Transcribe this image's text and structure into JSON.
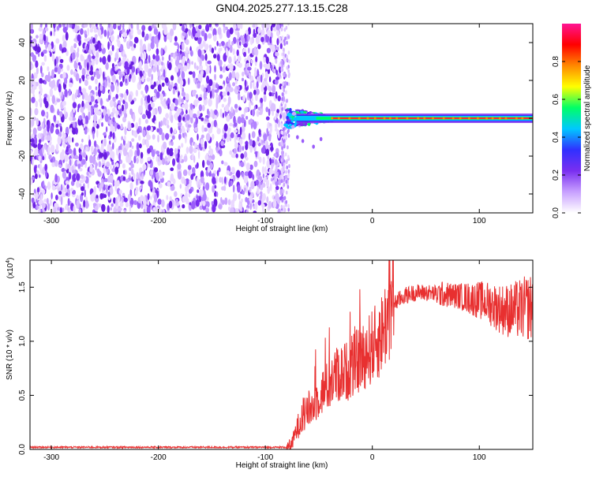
{
  "title": "GN04.2025.277.13.15.C28",
  "chart_data": [
    {
      "type": "heatmap",
      "xlabel": "Height of straight line (km)",
      "ylabel": "Frequency (Hz)",
      "xlim": [
        -320,
        150
      ],
      "ylim": [
        -50,
        50
      ],
      "xticks": [
        -300,
        -200,
        -100,
        0,
        100
      ],
      "yticks": [
        -40,
        -20,
        0,
        20,
        40
      ],
      "noise_region_x": [
        -320,
        -82
      ],
      "signal_center_frequency": 0,
      "signal_start_x": -82,
      "colorbar": {
        "label": "Normalized spectral amplitude",
        "range": [
          0.0,
          1.0
        ],
        "ticks": [
          0.0,
          0.2,
          0.4,
          0.6,
          0.8
        ],
        "tick_labels": [
          "0.0",
          "0.2",
          "0.4",
          "0.6",
          "0.8"
        ],
        "colors": [
          "#ffffff",
          "#c8a0ff",
          "#7a2ff0",
          "#3030ff",
          "#00c8ff",
          "#00ff66",
          "#ffff00",
          "#ff8800",
          "#ff0000",
          "#ff1493"
        ]
      }
    },
    {
      "type": "line",
      "xlabel": "Height of straight line (km)",
      "ylabel": "SNR (10 * v/v)",
      "y_multiplier": "(x10",
      "y_multiplier_exp": "4",
      "y_multiplier_close": ")",
      "xlim": [
        -320,
        150
      ],
      "ylim": [
        0,
        1.75
      ],
      "xticks": [
        -300,
        -200,
        -100,
        0,
        100
      ],
      "yticks": [
        0.0,
        0.5,
        1.0,
        1.5
      ],
      "ytick_labels": [
        "0.0",
        "0.5",
        "1.0",
        "1.5"
      ],
      "color": "#e83030",
      "series": [
        {
          "x": [
            -320,
            -150,
            -80,
            -75,
            -72,
            -68,
            -64,
            -60,
            -55,
            -50,
            -45,
            -40,
            -35,
            -30,
            -25,
            -20,
            -15,
            -10,
            -5,
            0,
            5,
            10,
            15,
            20,
            30,
            40,
            50,
            60,
            70,
            80,
            90,
            100,
            110,
            120,
            130,
            140,
            150
          ],
          "values": [
            0.02,
            0.02,
            0.02,
            0.05,
            0.15,
            0.25,
            0.3,
            0.35,
            0.4,
            0.5,
            0.55,
            0.6,
            0.68,
            0.7,
            0.72,
            0.75,
            0.8,
            0.85,
            0.9,
            0.95,
            1.0,
            1.1,
            1.25,
            1.35,
            1.42,
            1.45,
            1.45,
            1.44,
            1.43,
            1.42,
            1.4,
            1.38,
            1.35,
            1.3,
            1.28,
            1.3,
            1.32
          ]
        }
      ]
    }
  ]
}
